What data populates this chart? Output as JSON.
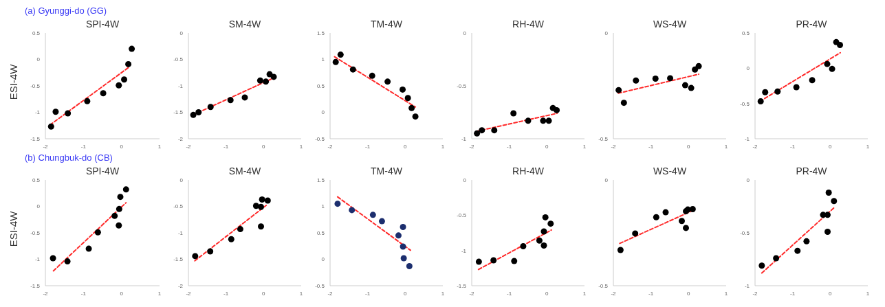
{
  "chart_data": [
    {
      "type": "scatter",
      "title": "SPI-4W",
      "annotations": [
        "(a) Gyunggi-do (GG)"
      ],
      "ylabel": "ESI-4W",
      "xlim": [
        -2,
        1
      ],
      "xticks": [
        -2,
        -1,
        0,
        1
      ],
      "ylim": [
        -1.5,
        0.5
      ],
      "yticks": [
        -1.5,
        -1,
        -0.5,
        0,
        0.5
      ],
      "series": [
        {
          "marker": "circle",
          "color": "#000000",
          "x": [
            -1.85,
            -1.73,
            -1.41,
            -0.9,
            -0.48,
            -0.07,
            0.07,
            0.18,
            0.27
          ],
          "values": [
            -1.27,
            -0.99,
            -1.02,
            -0.79,
            -0.64,
            -0.49,
            -0.38,
            -0.09,
            0.2
          ]
        },
        {
          "type": "line",
          "color": "#ff2a2a",
          "line_style": "dashed",
          "x": [
            -1.88,
            0.21
          ],
          "values": [
            -1.24,
            -0.14
          ]
        }
      ]
    },
    {
      "type": "scatter",
      "title": "SM-4W",
      "xlim": [
        -2,
        1
      ],
      "xticks": [
        -2,
        -1,
        0,
        1
      ],
      "ylim": [
        -2,
        0
      ],
      "yticks": [
        -2,
        -1.5,
        -1,
        -0.5,
        0
      ],
      "series": [
        {
          "marker": "circle",
          "color": "#000000",
          "x": [
            -1.87,
            -1.73,
            -1.41,
            -0.88,
            -0.5,
            -0.09,
            0.06,
            0.16,
            0.27
          ],
          "values": [
            -1.55,
            -1.5,
            -1.4,
            -1.27,
            -1.22,
            -0.9,
            -0.92,
            -0.78,
            -0.83
          ]
        },
        {
          "type": "line",
          "color": "#ff2a2a",
          "line_style": "dashed",
          "x": [
            -1.88,
            0.27
          ],
          "values": [
            -1.55,
            -0.85
          ]
        }
      ]
    },
    {
      "type": "scatter",
      "title": "TM-4W",
      "xlim": [
        -2,
        1
      ],
      "xticks": [
        -2,
        -1,
        0,
        1
      ],
      "ylim": [
        -0.5,
        1.5
      ],
      "yticks": [
        -0.5,
        0,
        0.5,
        1,
        1.5
      ],
      "series": [
        {
          "marker": "circle",
          "color": "#000000",
          "x": [
            -1.85,
            -1.72,
            -1.39,
            -0.88,
            -0.47,
            -0.07,
            0.07,
            0.17,
            0.27
          ],
          "values": [
            0.95,
            1.09,
            0.81,
            0.69,
            0.58,
            0.43,
            0.27,
            0.08,
            -0.08
          ]
        },
        {
          "type": "line",
          "color": "#ff2a2a",
          "line_style": "dashed",
          "x": [
            -1.88,
            0.27
          ],
          "values": [
            1.05,
            0.1
          ]
        }
      ]
    },
    {
      "type": "scatter",
      "title": "RH-4W",
      "xlim": [
        -2,
        1
      ],
      "xticks": [
        -2,
        -1,
        0,
        1
      ],
      "ylim": [
        -1,
        0
      ],
      "yticks": [
        -1,
        -0.5,
        0
      ],
      "series": [
        {
          "marker": "circle",
          "color": "#000000",
          "x": [
            -1.86,
            -1.73,
            -1.4,
            -0.89,
            -0.5,
            -0.1,
            0.05,
            0.16,
            0.26
          ],
          "values": [
            -0.95,
            -0.92,
            -0.92,
            -0.76,
            -0.83,
            -0.83,
            -0.83,
            -0.71,
            -0.73
          ]
        },
        {
          "type": "line",
          "color": "#ff2a2a",
          "line_style": "dashed",
          "x": [
            -1.88,
            0.27
          ],
          "values": [
            -0.93,
            -0.76
          ]
        }
      ]
    },
    {
      "type": "scatter",
      "title": "WS-4W",
      "xlim": [
        -2,
        1
      ],
      "xticks": [
        -2,
        -1,
        0,
        1
      ],
      "ylim": [
        -0.5,
        0
      ],
      "yticks": [
        -0.5,
        0
      ],
      "series": [
        {
          "marker": "circle",
          "color": "#000000",
          "x": [
            -1.86,
            -1.72,
            -1.4,
            -0.88,
            -0.49,
            -0.09,
            0.07,
            0.17,
            0.27
          ],
          "values": [
            -0.27,
            -0.33,
            -0.225,
            -0.216,
            -0.214,
            -0.247,
            -0.26,
            -0.173,
            -0.157
          ]
        },
        {
          "type": "line",
          "color": "#ff2a2a",
          "line_style": "dashed",
          "x": [
            -1.87,
            0.27
          ],
          "values": [
            -0.285,
            -0.195
          ]
        }
      ]
    },
    {
      "type": "scatter",
      "title": "PR-4W",
      "xlim": [
        -2,
        1
      ],
      "xticks": [
        -2,
        -1,
        0,
        1
      ],
      "ylim": [
        -1,
        0.5
      ],
      "yticks": [
        -1,
        -0.5,
        0,
        0.5
      ],
      "series": [
        {
          "marker": "circle",
          "color": "#000000",
          "x": [
            -1.85,
            -1.73,
            -1.4,
            -0.9,
            -0.48,
            -0.08,
            0.05,
            0.16,
            0.26
          ],
          "values": [
            -0.47,
            -0.34,
            -0.33,
            -0.27,
            -0.17,
            0.06,
            -0.01,
            0.37,
            0.33
          ]
        },
        {
          "type": "line",
          "color": "#ff2a2a",
          "line_style": "dashed",
          "x": [
            -1.87,
            0.27
          ],
          "values": [
            -0.47,
            0.22
          ]
        }
      ]
    },
    {
      "type": "scatter",
      "title": "SPI-4W",
      "annotations": [
        "(b) Chungbuk-do (CB)"
      ],
      "ylabel": "ESI-4W",
      "xlim": [
        -2,
        1
      ],
      "xticks": [
        -2,
        -1,
        0,
        1
      ],
      "ylim": [
        -1.5,
        0.5
      ],
      "yticks": [
        -1.5,
        -1,
        -0.5,
        0,
        0.5
      ],
      "series": [
        {
          "marker": "circle",
          "color": "#000000",
          "x": [
            -1.8,
            -1.42,
            -0.86,
            -0.62,
            -0.18,
            -0.07,
            -0.06,
            -0.03,
            0.12
          ],
          "values": [
            -0.98,
            -1.04,
            -0.8,
            -0.49,
            -0.18,
            -0.36,
            -0.05,
            0.18,
            0.32
          ]
        },
        {
          "type": "line",
          "color": "#ff2a2a",
          "line_style": "dashed",
          "x": [
            -1.79,
            0.12
          ],
          "values": [
            -1.22,
            0.07
          ]
        }
      ]
    },
    {
      "type": "scatter",
      "title": "SM-4W",
      "xlim": [
        -2,
        1
      ],
      "xticks": [
        -2,
        -1,
        0,
        1
      ],
      "ylim": [
        -2,
        0
      ],
      "yticks": [
        -2,
        -1.5,
        -1,
        -0.5,
        0
      ],
      "series": [
        {
          "marker": "circle",
          "color": "#000000",
          "x": [
            -1.82,
            -1.42,
            -0.86,
            -0.62,
            -0.2,
            -0.07,
            -0.07,
            -0.04,
            0.11
          ],
          "values": [
            -1.44,
            -1.35,
            -1.12,
            -0.93,
            -0.49,
            -0.88,
            -0.51,
            -0.37,
            -0.39
          ]
        },
        {
          "type": "line",
          "color": "#ff2a2a",
          "line_style": "dashed",
          "x": [
            -1.83,
            0.07
          ],
          "values": [
            -1.53,
            -0.48
          ]
        }
      ]
    },
    {
      "type": "scatter",
      "title": "TM-4W",
      "xlim": [
        -2,
        1
      ],
      "xticks": [
        -2,
        -1,
        0,
        1
      ],
      "ylim": [
        -0.5,
        1.5
      ],
      "yticks": [
        -0.5,
        0,
        0.5,
        1,
        1.5
      ],
      "series": [
        {
          "marker": "circle",
          "color": "#1c2e6e",
          "x": [
            -1.8,
            -1.42,
            -0.86,
            -0.62,
            -0.18,
            -0.06,
            -0.06,
            -0.04,
            0.11
          ],
          "values": [
            1.05,
            0.93,
            0.84,
            0.72,
            0.45,
            0.61,
            0.24,
            0.02,
            -0.13
          ]
        },
        {
          "type": "line",
          "color": "#ff2a2a",
          "line_style": "dashed",
          "x": [
            -1.8,
            0.14
          ],
          "values": [
            1.18,
            0.17
          ]
        }
      ]
    },
    {
      "type": "scatter",
      "title": "RH-4W",
      "xlim": [
        -2,
        1
      ],
      "xticks": [
        -2,
        -1,
        0,
        1
      ],
      "ylim": [
        -1.5,
        0
      ],
      "yticks": [
        -1.5,
        -1,
        -0.5,
        0
      ],
      "series": [
        {
          "marker": "circle",
          "color": "#000000",
          "x": [
            -1.81,
            -1.42,
            -0.87,
            -0.63,
            -0.2,
            -0.08,
            -0.08,
            -0.04,
            0.1
          ],
          "values": [
            -1.16,
            -1.14,
            -1.15,
            -0.94,
            -0.86,
            -0.73,
            -0.93,
            -0.53,
            -0.62
          ]
        },
        {
          "type": "line",
          "color": "#ff2a2a",
          "line_style": "dashed",
          "x": [
            -1.82,
            0.12
          ],
          "values": [
            -1.27,
            -0.71
          ]
        }
      ]
    },
    {
      "type": "scatter",
      "title": "WS-4W",
      "xlim": [
        -2,
        1
      ],
      "xticks": [
        -2,
        -1,
        0,
        1
      ],
      "ylim": [
        -0.5,
        0
      ],
      "yticks": [
        -0.5,
        0
      ],
      "series": [
        {
          "marker": "circle",
          "color": "#000000",
          "x": [
            -1.81,
            -1.42,
            -0.86,
            -0.61,
            -0.18,
            -0.07,
            -0.07,
            -0.02,
            0.11
          ],
          "values": [
            -0.331,
            -0.253,
            -0.176,
            -0.153,
            -0.194,
            -0.227,
            -0.148,
            -0.14,
            -0.138
          ]
        },
        {
          "type": "line",
          "color": "#ff2a2a",
          "line_style": "dashed",
          "x": [
            -1.83,
            0.17
          ],
          "values": [
            -0.3,
            -0.14
          ]
        }
      ]
    },
    {
      "type": "scatter",
      "title": "PR-4W",
      "xlim": [
        -2,
        1
      ],
      "xticks": [
        -2,
        -1,
        0,
        1
      ],
      "ylim": [
        -1,
        0
      ],
      "yticks": [
        -1,
        -0.5,
        0
      ],
      "series": [
        {
          "marker": "circle",
          "color": "#000000",
          "x": [
            -1.82,
            -1.44,
            -0.87,
            -0.63,
            -0.19,
            -0.07,
            -0.07,
            -0.04,
            0.1
          ],
          "values": [
            -0.81,
            -0.74,
            -0.67,
            -0.58,
            -0.33,
            -0.49,
            -0.33,
            -0.12,
            -0.2
          ]
        },
        {
          "type": "line",
          "color": "#ff2a2a",
          "line_style": "dashed",
          "x": [
            -1.82,
            0.11
          ],
          "values": [
            -0.88,
            -0.26
          ]
        }
      ]
    }
  ]
}
